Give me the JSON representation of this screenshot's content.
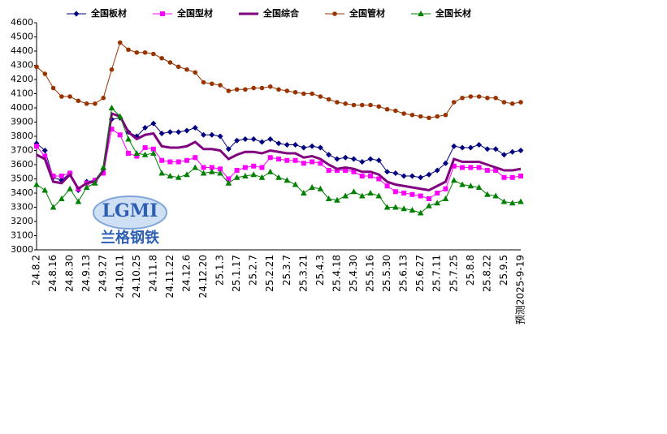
{
  "chart_data": {
    "type": "line",
    "watermark": {
      "logo": "LGMI",
      "name": "兰格钢铁"
    },
    "categories": [
      "24.8.2",
      null,
      "24.8.16",
      null,
      "24.8.30",
      null,
      "24.9.13",
      null,
      "24.9.27",
      null,
      "24.10.11",
      null,
      "24.10.25",
      null,
      "24.11.8",
      null,
      "24.11.22",
      null,
      "24.12.6",
      null,
      "24.12.20",
      null,
      "25.1.3",
      null,
      "25.1.17",
      null,
      "25.2.7",
      null,
      "25.2.21",
      null,
      "25.3.7",
      null,
      "25.3.21",
      null,
      "25.4.3",
      null,
      "25.4.18",
      null,
      "25.4.30",
      null,
      "25.5.16",
      null,
      "25.5.30",
      null,
      "25.6.13",
      null,
      "25.6.27",
      null,
      "25.7.11",
      null,
      "25.7.25",
      null,
      "25.8.8",
      null,
      "25.8.22",
      null,
      "25.9.5",
      null,
      "预测2025-9-19"
    ],
    "series": [
      {
        "name": "全国板材",
        "color": "#000080",
        "marker": "diamond",
        "width": 1,
        "values": [
          3750,
          3700,
          3510,
          3490,
          3540,
          3420,
          3480,
          3490,
          3570,
          3920,
          3930,
          3830,
          3800,
          3860,
          3890,
          3820,
          3830,
          3830,
          3840,
          3860,
          3810,
          3810,
          3800,
          3710,
          3770,
          3780,
          3780,
          3760,
          3780,
          3750,
          3740,
          3740,
          3720,
          3730,
          3720,
          3670,
          3640,
          3650,
          3640,
          3620,
          3640,
          3630,
          3550,
          3540,
          3520,
          3520,
          3510,
          3530,
          3560,
          3610,
          3730,
          3720,
          3720,
          3740,
          3710,
          3710,
          3670,
          3690,
          3700
        ]
      },
      {
        "name": "全国型材",
        "color": "#ff00ff",
        "marker": "square",
        "width": 1,
        "values": [
          3730,
          3660,
          3520,
          3520,
          3540,
          3430,
          3470,
          3490,
          3540,
          3850,
          3810,
          3680,
          3660,
          3720,
          3710,
          3630,
          3620,
          3620,
          3630,
          3650,
          3580,
          3580,
          3570,
          3500,
          3560,
          3580,
          3590,
          3580,
          3650,
          3640,
          3630,
          3630,
          3610,
          3620,
          3610,
          3560,
          3560,
          3560,
          3550,
          3520,
          3520,
          3500,
          3450,
          3410,
          3400,
          3390,
          3380,
          3360,
          3400,
          3430,
          3590,
          3580,
          3580,
          3580,
          3560,
          3560,
          3510,
          3510,
          3520
        ]
      },
      {
        "name": "全国综合",
        "color": "#800080",
        "marker": "none",
        "width": 3,
        "values": [
          3670,
          3640,
          3480,
          3470,
          3530,
          3430,
          3470,
          3480,
          3560,
          3960,
          3940,
          3830,
          3780,
          3810,
          3820,
          3730,
          3720,
          3720,
          3730,
          3760,
          3710,
          3710,
          3700,
          3640,
          3670,
          3690,
          3690,
          3680,
          3700,
          3690,
          3680,
          3680,
          3650,
          3660,
          3640,
          3600,
          3570,
          3580,
          3570,
          3550,
          3550,
          3530,
          3480,
          3460,
          3450,
          3440,
          3430,
          3420,
          3450,
          3480,
          3640,
          3620,
          3620,
          3620,
          3600,
          3580,
          3560,
          3560,
          3570
        ]
      },
      {
        "name": "全国管材",
        "color": "#993300",
        "marker": "circle",
        "width": 1,
        "values": [
          4290,
          4240,
          4140,
          4080,
          4080,
          4050,
          4030,
          4030,
          4070,
          4270,
          4460,
          4410,
          4390,
          4390,
          4380,
          4350,
          4320,
          4290,
          4270,
          4250,
          4180,
          4170,
          4160,
          4120,
          4130,
          4130,
          4140,
          4140,
          4150,
          4130,
          4120,
          4110,
          4100,
          4100,
          4080,
          4060,
          4040,
          4030,
          4020,
          4020,
          4020,
          4010,
          3990,
          3980,
          3960,
          3950,
          3940,
          3930,
          3940,
          3950,
          4040,
          4070,
          4080,
          4080,
          4070,
          4070,
          4040,
          4030,
          4040
        ]
      },
      {
        "name": "全国长材",
        "color": "#008000",
        "marker": "triangle",
        "width": 1,
        "values": [
          3460,
          3420,
          3300,
          3360,
          3430,
          3340,
          3440,
          3470,
          3580,
          4000,
          3940,
          3780,
          3680,
          3670,
          3680,
          3540,
          3520,
          3510,
          3530,
          3580,
          3540,
          3550,
          3540,
          3470,
          3510,
          3520,
          3530,
          3510,
          3550,
          3510,
          3490,
          3460,
          3400,
          3440,
          3430,
          3360,
          3350,
          3380,
          3410,
          3380,
          3400,
          3380,
          3300,
          3300,
          3290,
          3280,
          3260,
          3310,
          3330,
          3360,
          3490,
          3460,
          3450,
          3440,
          3390,
          3380,
          3340,
          3330,
          3340
        ]
      }
    ],
    "ylim": [
      3000,
      4600
    ],
    "yticks": [
      3000,
      3100,
      3200,
      3300,
      3400,
      3500,
      3600,
      3700,
      3800,
      3900,
      4000,
      4100,
      4200,
      4300,
      4400,
      4500,
      4600
    ],
    "legend": "top"
  }
}
